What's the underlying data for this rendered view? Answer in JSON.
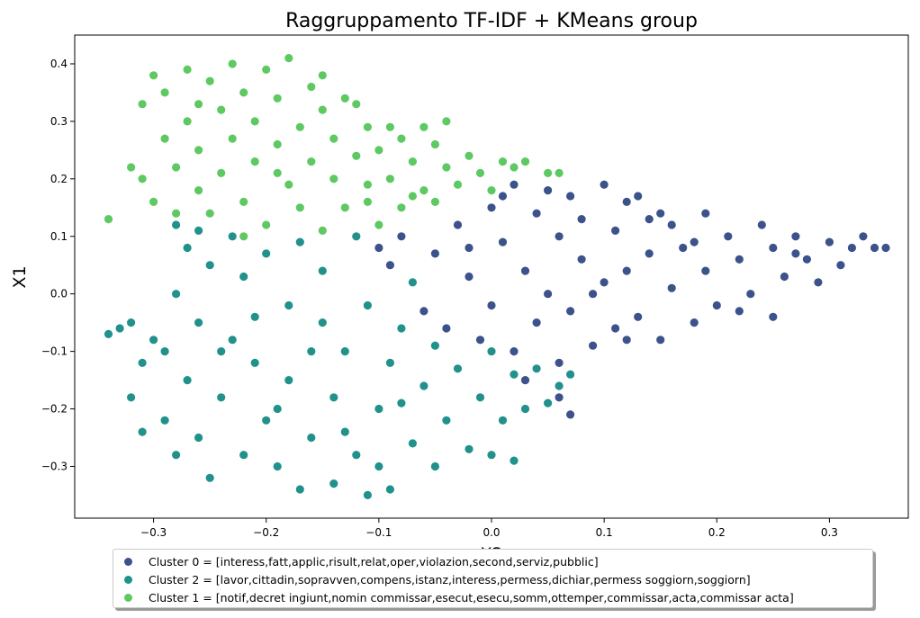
{
  "chart_data": {
    "type": "scatter",
    "title": "Raggruppamento TF-IDF + KMeans group",
    "xlabel": "X2",
    "ylabel": "X1",
    "xlim": [
      -0.37,
      0.37
    ],
    "ylim": [
      -0.39,
      0.45
    ],
    "x_ticks": [
      -0.3,
      -0.2,
      -0.1,
      0.0,
      0.1,
      0.2,
      0.3
    ],
    "x_tick_labels": [
      "−0.3",
      "−0.2",
      "−0.1",
      "0.0",
      "0.1",
      "0.2",
      "0.3"
    ],
    "y_ticks": [
      -0.3,
      -0.2,
      -0.1,
      0.0,
      0.1,
      0.2,
      0.3,
      0.4
    ],
    "y_tick_labels": [
      "−0.3",
      "−0.2",
      "−0.1",
      "0.0",
      "0.1",
      "0.2",
      "0.3",
      "0.4"
    ],
    "grid": false,
    "legend_placement": "bottom-center",
    "series": [
      {
        "name": "Cluster 0 = [interess,fatt,applic,risult,relat,oper,violazion,second,serviz,pubblic]",
        "color": "#3b528b",
        "points": [
          [
            -0.1,
            0.08
          ],
          [
            -0.09,
            0.05
          ],
          [
            -0.08,
            0.1
          ],
          [
            -0.07,
            0.02
          ],
          [
            -0.06,
            -0.03
          ],
          [
            -0.05,
            0.07
          ],
          [
            -0.04,
            -0.06
          ],
          [
            -0.03,
            0.12
          ],
          [
            -0.02,
            0.03
          ],
          [
            -0.01,
            -0.08
          ],
          [
            0.0,
            0.15
          ],
          [
            0.0,
            -0.02
          ],
          [
            0.01,
            0.09
          ],
          [
            0.02,
            0.19
          ],
          [
            0.02,
            -0.1
          ],
          [
            0.03,
            0.04
          ],
          [
            0.04,
            0.14
          ],
          [
            0.04,
            -0.05
          ],
          [
            0.05,
            0.18
          ],
          [
            0.05,
            0.0
          ],
          [
            0.06,
            0.1
          ],
          [
            0.06,
            -0.12
          ],
          [
            0.07,
            0.17
          ],
          [
            0.07,
            -0.03
          ],
          [
            0.08,
            0.13
          ],
          [
            0.08,
            0.06
          ],
          [
            0.09,
            -0.09
          ],
          [
            0.1,
            0.19
          ],
          [
            0.1,
            0.02
          ],
          [
            0.11,
            0.11
          ],
          [
            0.11,
            -0.06
          ],
          [
            0.12,
            0.16
          ],
          [
            0.12,
            0.04
          ],
          [
            0.13,
            -0.04
          ],
          [
            0.14,
            0.13
          ],
          [
            0.14,
            0.07
          ],
          [
            0.15,
            -0.08
          ],
          [
            0.16,
            0.12
          ],
          [
            0.16,
            0.01
          ],
          [
            0.17,
            0.08
          ],
          [
            0.18,
            -0.05
          ],
          [
            0.19,
            0.14
          ],
          [
            0.19,
            0.04
          ],
          [
            0.2,
            -0.02
          ],
          [
            0.21,
            0.1
          ],
          [
            0.22,
            0.06
          ],
          [
            0.23,
            0.0
          ],
          [
            0.24,
            0.12
          ],
          [
            0.25,
            0.08
          ],
          [
            0.25,
            -0.04
          ],
          [
            0.26,
            0.03
          ],
          [
            0.27,
            0.1
          ],
          [
            0.28,
            0.06
          ],
          [
            0.29,
            0.02
          ],
          [
            0.3,
            0.09
          ],
          [
            0.31,
            0.05
          ],
          [
            0.32,
            0.08
          ],
          [
            0.33,
            0.1
          ],
          [
            0.34,
            0.08
          ],
          [
            0.35,
            0.08
          ],
          [
            0.03,
            -0.15
          ],
          [
            0.06,
            -0.18
          ],
          [
            0.07,
            -0.21
          ],
          [
            0.13,
            0.17
          ],
          [
            0.18,
            0.09
          ],
          [
            0.22,
            -0.03
          ],
          [
            0.09,
            0.0
          ],
          [
            0.01,
            0.17
          ],
          [
            -0.02,
            0.08
          ],
          [
            0.15,
            0.14
          ],
          [
            0.27,
            0.07
          ],
          [
            0.12,
            -0.08
          ]
        ]
      },
      {
        "name": "Cluster 2 = [lavor,cittadin,sopravven,compens,istanz,interess,permess,dichiar,permess soggiorn,soggiorn]",
        "color": "#21918c",
        "points": [
          [
            -0.34,
            -0.07
          ],
          [
            -0.33,
            -0.06
          ],
          [
            -0.32,
            -0.05
          ],
          [
            -0.32,
            -0.18
          ],
          [
            -0.31,
            -0.12
          ],
          [
            -0.31,
            -0.24
          ],
          [
            -0.3,
            -0.08
          ],
          [
            -0.29,
            -0.22
          ],
          [
            -0.29,
            -0.1
          ],
          [
            -0.28,
            0.12
          ],
          [
            -0.28,
            -0.28
          ],
          [
            -0.28,
            0.0
          ],
          [
            -0.27,
            0.08
          ],
          [
            -0.27,
            -0.15
          ],
          [
            -0.26,
            -0.05
          ],
          [
            -0.26,
            -0.25
          ],
          [
            -0.25,
            0.05
          ],
          [
            -0.25,
            -0.32
          ],
          [
            -0.24,
            -0.18
          ],
          [
            -0.23,
            0.1
          ],
          [
            -0.23,
            -0.08
          ],
          [
            -0.22,
            -0.28
          ],
          [
            -0.22,
            0.03
          ],
          [
            -0.21,
            -0.12
          ],
          [
            -0.2,
            0.07
          ],
          [
            -0.2,
            -0.22
          ],
          [
            -0.19,
            -0.3
          ],
          [
            -0.18,
            -0.02
          ],
          [
            -0.18,
            -0.15
          ],
          [
            -0.17,
            0.09
          ],
          [
            -0.17,
            -0.34
          ],
          [
            -0.16,
            -0.25
          ],
          [
            -0.15,
            -0.05
          ],
          [
            -0.15,
            0.04
          ],
          [
            -0.14,
            -0.18
          ],
          [
            -0.14,
            -0.33
          ],
          [
            -0.13,
            -0.1
          ],
          [
            -0.12,
            0.1
          ],
          [
            -0.12,
            -0.28
          ],
          [
            -0.11,
            -0.35
          ],
          [
            -0.11,
            -0.02
          ],
          [
            -0.1,
            -0.2
          ],
          [
            -0.09,
            -0.12
          ],
          [
            -0.09,
            -0.34
          ],
          [
            -0.08,
            -0.06
          ],
          [
            -0.07,
            -0.26
          ],
          [
            -0.07,
            0.02
          ],
          [
            -0.06,
            -0.16
          ],
          [
            -0.05,
            -0.3
          ],
          [
            -0.05,
            -0.09
          ],
          [
            -0.04,
            -0.22
          ],
          [
            -0.03,
            -0.13
          ],
          [
            -0.02,
            -0.27
          ],
          [
            -0.01,
            -0.18
          ],
          [
            0.0,
            -0.1
          ],
          [
            0.0,
            -0.28
          ],
          [
            0.01,
            -0.22
          ],
          [
            0.02,
            -0.14
          ],
          [
            0.02,
            -0.29
          ],
          [
            0.03,
            -0.2
          ],
          [
            0.04,
            -0.13
          ],
          [
            0.05,
            -0.19
          ],
          [
            0.06,
            -0.16
          ],
          [
            0.07,
            -0.14
          ],
          [
            -0.24,
            -0.1
          ],
          [
            -0.19,
            -0.2
          ],
          [
            -0.13,
            -0.24
          ],
          [
            -0.08,
            -0.19
          ],
          [
            -0.16,
            -0.1
          ],
          [
            -0.21,
            -0.04
          ],
          [
            -0.26,
            0.11
          ],
          [
            -0.1,
            -0.3
          ]
        ]
      },
      {
        "name": "Cluster 1 = [notif,decret ingiunt,nomin commissar,esecut,esecu,somm,ottemper,commissar,acta,commissar acta]",
        "color": "#5ec962",
        "points": [
          [
            -0.32,
            0.22
          ],
          [
            -0.31,
            0.2
          ],
          [
            -0.31,
            0.33
          ],
          [
            -0.3,
            0.38
          ],
          [
            -0.3,
            0.16
          ],
          [
            -0.29,
            0.27
          ],
          [
            -0.29,
            0.35
          ],
          [
            -0.28,
            0.14
          ],
          [
            -0.28,
            0.22
          ],
          [
            -0.27,
            0.39
          ],
          [
            -0.27,
            0.3
          ],
          [
            -0.26,
            0.18
          ],
          [
            -0.26,
            0.25
          ],
          [
            -0.25,
            0.37
          ],
          [
            -0.25,
            0.14
          ],
          [
            -0.24,
            0.32
          ],
          [
            -0.24,
            0.21
          ],
          [
            -0.23,
            0.4
          ],
          [
            -0.23,
            0.27
          ],
          [
            -0.22,
            0.16
          ],
          [
            -0.22,
            0.35
          ],
          [
            -0.21,
            0.23
          ],
          [
            -0.21,
            0.3
          ],
          [
            -0.2,
            0.39
          ],
          [
            -0.2,
            0.12
          ],
          [
            -0.19,
            0.26
          ],
          [
            -0.19,
            0.34
          ],
          [
            -0.18,
            0.41
          ],
          [
            -0.18,
            0.19
          ],
          [
            -0.17,
            0.29
          ],
          [
            -0.17,
            0.15
          ],
          [
            -0.16,
            0.36
          ],
          [
            -0.16,
            0.23
          ],
          [
            -0.15,
            0.32
          ],
          [
            -0.15,
            0.11
          ],
          [
            -0.14,
            0.27
          ],
          [
            -0.14,
            0.2
          ],
          [
            -0.13,
            0.34
          ],
          [
            -0.13,
            0.15
          ],
          [
            -0.12,
            0.24
          ],
          [
            -0.12,
            0.33
          ],
          [
            -0.11,
            0.19
          ],
          [
            -0.11,
            0.29
          ],
          [
            -0.1,
            0.12
          ],
          [
            -0.1,
            0.25
          ],
          [
            -0.09,
            0.2
          ],
          [
            -0.09,
            0.29
          ],
          [
            -0.08,
            0.15
          ],
          [
            -0.08,
            0.27
          ],
          [
            -0.07,
            0.23
          ],
          [
            -0.06,
            0.29
          ],
          [
            -0.06,
            0.18
          ],
          [
            -0.05,
            0.26
          ],
          [
            -0.05,
            0.16
          ],
          [
            -0.04,
            0.22
          ],
          [
            -0.04,
            0.3
          ],
          [
            -0.03,
            0.19
          ],
          [
            -0.02,
            0.24
          ],
          [
            -0.01,
            0.21
          ],
          [
            0.0,
            0.18
          ],
          [
            0.01,
            0.23
          ],
          [
            0.02,
            0.22
          ],
          [
            0.03,
            0.23
          ],
          [
            0.05,
            0.21
          ],
          [
            0.06,
            0.21
          ],
          [
            -0.34,
            0.13
          ],
          [
            -0.22,
            0.1
          ],
          [
            -0.15,
            0.38
          ],
          [
            -0.26,
            0.33
          ],
          [
            -0.19,
            0.21
          ],
          [
            -0.11,
            0.16
          ],
          [
            -0.07,
            0.17
          ]
        ]
      }
    ]
  }
}
